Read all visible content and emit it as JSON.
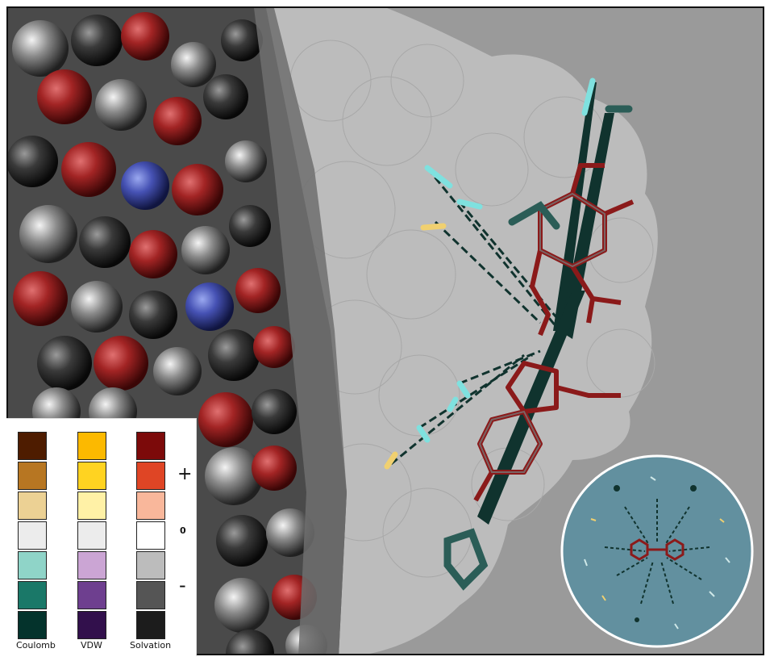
{
  "legend": {
    "coulomb": {
      "label": "Coulomb",
      "colors": [
        "#4e1c00",
        "#b77622",
        "#ecd194",
        "#ececec",
        "#8fd4c8",
        "#1a7868",
        "#04332c"
      ]
    },
    "vdw": {
      "label": "VDW",
      "colors": [
        "#fcb900",
        "#ffd321",
        "#fff1a6",
        "#ececec",
        "#cba5d4",
        "#6e3f8f",
        "#32104c"
      ]
    },
    "solvation": {
      "label": "Solvation",
      "colors": [
        "#7c0a0a",
        "#df4525",
        "#f9b79b",
        "#ffffff",
        "#bcbcbc",
        "#555555",
        "#1c1c1c"
      ]
    },
    "plus": "+",
    "zero": "0",
    "minus": "-"
  },
  "colors": {
    "background": "#9a9a9a",
    "surface": "#bdbdbd",
    "inset_bg": "#62909f",
    "ligand": "#8b1a1a",
    "arrow": "#10332e"
  }
}
